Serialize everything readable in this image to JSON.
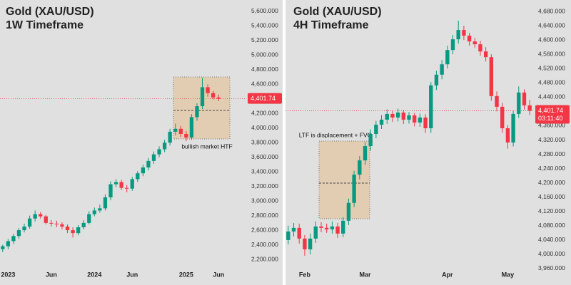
{
  "chart_data": [
    {
      "type": "candlestick",
      "title": "Gold (XAU/USD)",
      "subtitle": "1W Timeframe",
      "categories": [
        null,
        "2023",
        null,
        null,
        null,
        null,
        null,
        null,
        null,
        "Jun",
        null,
        null,
        null,
        null,
        null,
        null,
        null,
        "2024",
        null,
        null,
        null,
        null,
        null,
        null,
        "Jun",
        null,
        null,
        null,
        null,
        null,
        null,
        null,
        null,
        null,
        "2025",
        null,
        null,
        null,
        null,
        null,
        "Jun"
      ],
      "open": [
        2340,
        2380,
        2450,
        2520,
        2600,
        2650,
        2760,
        2820,
        2790,
        2700,
        2690,
        2680,
        2650,
        2600,
        2560,
        2640,
        2700,
        2820,
        2870,
        2900,
        3050,
        3230,
        3260,
        3180,
        3170,
        3300,
        3380,
        3460,
        3550,
        3640,
        3710,
        3800,
        3950,
        3990,
        3920,
        3870,
        4150,
        4300,
        4560,
        4480,
        4420
      ],
      "high": [
        2400,
        2480,
        2550,
        2630,
        2690,
        2800,
        2870,
        2850,
        2810,
        2740,
        2730,
        2710,
        2680,
        2640,
        2670,
        2740,
        2860,
        2910,
        2950,
        3090,
        3270,
        3300,
        3290,
        3220,
        3330,
        3410,
        3500,
        3590,
        3680,
        3750,
        3840,
        3990,
        4060,
        4030,
        3960,
        4190,
        4340,
        4690,
        4600,
        4510,
        4460
      ],
      "low": [
        2300,
        2340,
        2410,
        2480,
        2570,
        2620,
        2720,
        2760,
        2680,
        2650,
        2640,
        2610,
        2560,
        2500,
        2530,
        2610,
        2680,
        2790,
        2840,
        2870,
        3010,
        3190,
        3150,
        3120,
        3140,
        3260,
        3340,
        3420,
        3510,
        3600,
        3670,
        3760,
        3900,
        3880,
        3820,
        3840,
        4100,
        4260,
        4430,
        4390,
        4370
      ],
      "close": [
        2380,
        2450,
        2520,
        2600,
        2650,
        2760,
        2820,
        2790,
        2700,
        2690,
        2680,
        2650,
        2600,
        2560,
        2640,
        2700,
        2820,
        2870,
        2900,
        3050,
        3230,
        3260,
        3180,
        3170,
        3300,
        3380,
        3460,
        3550,
        3640,
        3710,
        3800,
        3950,
        3990,
        3920,
        3870,
        4150,
        4300,
        4560,
        4480,
        4420,
        4401.74
      ],
      "up_color": "#089981",
      "down_color": "#f23645",
      "ylim": [
        2044,
        5756
      ],
      "yticks": [
        {
          "value": 5600,
          "label": "5,600.000"
        },
        {
          "value": 5400,
          "label": "5,400.000"
        },
        {
          "value": 5200,
          "label": "5,200.000"
        },
        {
          "value": 5000,
          "label": "5,000.000"
        },
        {
          "value": 4800,
          "label": "4,800.000"
        },
        {
          "value": 4600,
          "label": "4,600.000"
        },
        {
          "value": 4200,
          "label": "4,200.000"
        },
        {
          "value": 4000,
          "label": "4,000.000"
        },
        {
          "value": 3800,
          "label": "3,800.000"
        },
        {
          "value": 3600,
          "label": "3,600.000"
        },
        {
          "value": 3400,
          "label": "3,400.000"
        },
        {
          "value": 3200,
          "label": "3,200.000"
        },
        {
          "value": 3000,
          "label": "3,000.000"
        },
        {
          "value": 2800,
          "label": "2,800.000"
        },
        {
          "value": 2600,
          "label": "2,600.000"
        },
        {
          "value": 2400,
          "label": "2,400.000"
        },
        {
          "value": 2200,
          "label": "2,200.000"
        }
      ],
      "price_label": "4,401.74",
      "annotation": "bullish market HTF"
    },
    {
      "type": "candlestick",
      "title": "Gold (XAU/USD)",
      "subtitle": "4H Timeframe",
      "categories": [
        null,
        null,
        null,
        "Feb",
        null,
        null,
        null,
        null,
        null,
        null,
        null,
        null,
        null,
        null,
        "Mar",
        null,
        null,
        null,
        null,
        null,
        null,
        null,
        null,
        null,
        null,
        null,
        null,
        null,
        null,
        "Apr",
        null,
        null,
        null,
        null,
        null,
        null,
        null,
        null,
        null,
        null,
        "May",
        null,
        null,
        null,
        null
      ],
      "open": [
        4040,
        4064,
        4074,
        4044,
        4014,
        4044,
        4078,
        4074,
        4070,
        4078,
        4058,
        4094,
        4144,
        4223,
        4263,
        4303,
        4337,
        4363,
        4377,
        4393,
        4383,
        4397,
        4377,
        4389,
        4369,
        4383,
        4353,
        4473,
        4503,
        4532,
        4572,
        4602,
        4628,
        4612,
        4596,
        4588,
        4568,
        4552,
        4443,
        4413,
        4353,
        4313,
        4393,
        4453,
        4417
      ],
      "high": [
        4080,
        4088,
        4086,
        4054,
        4058,
        4092,
        4090,
        4086,
        4092,
        4088,
        4104,
        4156,
        4234,
        4275,
        4314,
        4350,
        4374,
        4390,
        4406,
        4402,
        4408,
        4404,
        4398,
        4396,
        4394,
        4392,
        4482,
        4514,
        4544,
        4584,
        4614,
        4654,
        4640,
        4620,
        4606,
        4598,
        4580,
        4560,
        4456,
        4424,
        4362,
        4402,
        4470,
        4462,
        4432
      ],
      "low": [
        4028,
        4050,
        4030,
        3996,
        4000,
        4032,
        4062,
        4060,
        4058,
        4046,
        4048,
        4082,
        4132,
        4210,
        4250,
        4290,
        4325,
        4351,
        4365,
        4371,
        4372,
        4365,
        4366,
        4358,
        4357,
        4340,
        4340,
        4460,
        4490,
        4520,
        4560,
        4590,
        4600,
        4584,
        4578,
        4556,
        4540,
        4430,
        4400,
        4340,
        4296,
        4302,
        4382,
        4405,
        4390
      ],
      "close": [
        4064,
        4074,
        4044,
        4014,
        4044,
        4078,
        4074,
        4070,
        4078,
        4058,
        4094,
        4144,
        4223,
        4263,
        4303,
        4337,
        4363,
        4377,
        4393,
        4383,
        4397,
        4377,
        4389,
        4369,
        4383,
        4353,
        4473,
        4503,
        4532,
        4572,
        4602,
        4628,
        4612,
        4596,
        4588,
        4568,
        4552,
        4443,
        4413,
        4353,
        4313,
        4393,
        4453,
        4417,
        4401.74
      ],
      "up_color": "#089981",
      "down_color": "#f23645",
      "ylim": [
        3954,
        4712
      ],
      "yticks": [
        {
          "value": 4680,
          "label": "4,680.000"
        },
        {
          "value": 4640,
          "label": "4,640.000"
        },
        {
          "value": 4600,
          "label": "4,600.000"
        },
        {
          "value": 4560,
          "label": "4,560.000"
        },
        {
          "value": 4520,
          "label": "4,520.000"
        },
        {
          "value": 4480,
          "label": "4,480.000"
        },
        {
          "value": 4440,
          "label": "4,440.000"
        },
        {
          "value": 4360,
          "label": "4,360.000"
        },
        {
          "value": 4320,
          "label": "4,320.000"
        },
        {
          "value": 4280,
          "label": "4,280.000"
        },
        {
          "value": 4240,
          "label": "4,240.000"
        },
        {
          "value": 4200,
          "label": "4,200.000"
        },
        {
          "value": 4160,
          "label": "4,160.000"
        },
        {
          "value": 4120,
          "label": "4,120.000"
        },
        {
          "value": 4080,
          "label": "4,080.000"
        },
        {
          "value": 4040,
          "label": "4,040.000"
        },
        {
          "value": 4000,
          "label": "4,000.000"
        },
        {
          "value": 3960,
          "label": "3,960.000"
        }
      ],
      "price_label": "4,401.74",
      "countdown": "03:11:40",
      "annotation": "LTF is displacement + FVG"
    }
  ]
}
